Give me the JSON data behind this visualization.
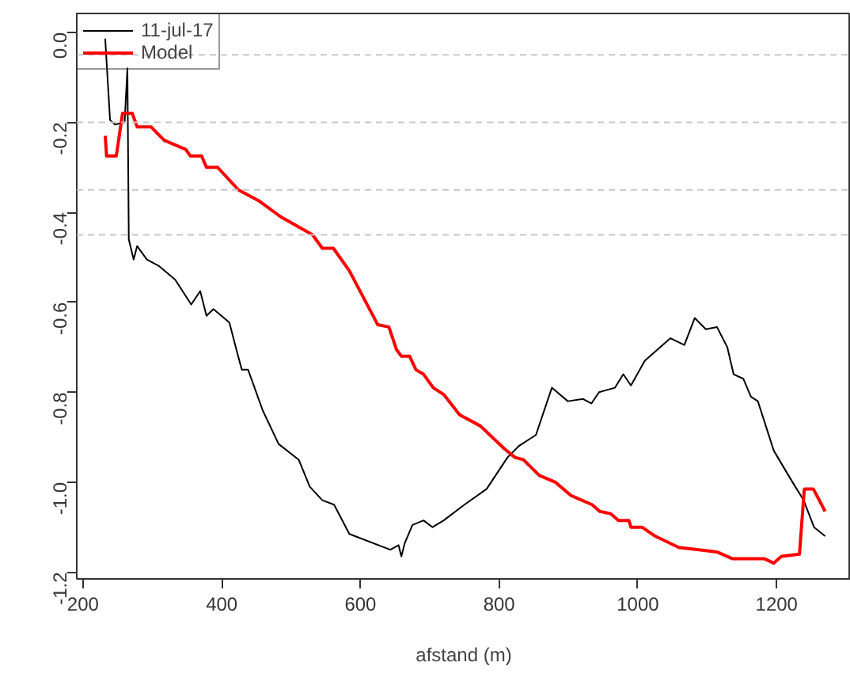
{
  "chart_data": {
    "type": "line",
    "xlabel": "afstand (m)",
    "xlim": [
      191,
      1307
    ],
    "ylim": [
      -1.215,
      0.042
    ],
    "xticks": [
      200,
      400,
      600,
      800,
      1000,
      1200
    ],
    "yticks": [
      {
        "value": 0,
        "label": "0.0"
      },
      -0.2,
      -0.4,
      -0.6,
      -0.8,
      {
        "value": -1,
        "label": "-1.0"
      },
      -1.2
    ],
    "grid": false,
    "legend": "top left",
    "line_style": "solid",
    "marker": "none",
    "series": [
      {
        "name": "11-jul-17",
        "color": "#000000",
        "x": [
          232,
          239,
          246,
          260,
          264,
          266,
          273,
          278,
          292,
          310,
          333,
          356,
          369,
          378,
          388,
          411,
          422,
          429,
          438,
          459,
          482,
          511,
          527,
          545,
          562,
          584,
          643,
          655,
          659,
          664,
          675,
          691,
          704,
          720,
          750,
          782,
          812,
          828,
          853,
          876,
          899,
          921,
          933,
          944,
          967,
          979,
          990,
          1010,
          1047,
          1067,
          1082,
          1098,
          1114,
          1129,
          1138,
          1152,
          1163,
          1173,
          1196,
          1223,
          1239,
          1254,
          1270
        ],
        "values": [
          -0.014,
          -0.195,
          -0.205,
          -0.2,
          -0.08,
          -0.46,
          -0.505,
          -0.475,
          -0.505,
          -0.52,
          -0.55,
          -0.605,
          -0.575,
          -0.63,
          -0.615,
          -0.645,
          -0.71,
          -0.75,
          -0.75,
          -0.84,
          -0.915,
          -0.95,
          -1.01,
          -1.04,
          -1.05,
          -1.115,
          -1.15,
          -1.14,
          -1.165,
          -1.135,
          -1.095,
          -1.085,
          -1.1,
          -1.085,
          -1.05,
          -1.015,
          -0.945,
          -0.92,
          -0.895,
          -0.79,
          -0.82,
          -0.815,
          -0.825,
          -0.8,
          -0.79,
          -0.76,
          -0.785,
          -0.73,
          -0.68,
          -0.695,
          -0.635,
          -0.66,
          -0.655,
          -0.7,
          -0.76,
          -0.77,
          -0.81,
          -0.82,
          -0.93,
          -1.0,
          -1.04,
          -1.1,
          -1.12
        ]
      },
      {
        "name": "Model",
        "color": "#ff0000",
        "x": [
          232,
          234,
          248,
          257,
          271,
          278,
          298,
          317,
          348,
          355,
          371,
          378,
          394,
          424,
          454,
          485,
          531,
          545,
          561,
          584,
          625,
          641,
          652,
          659,
          671,
          680,
          691,
          705,
          720,
          743,
          773,
          807,
          823,
          835,
          858,
          881,
          904,
          934,
          945,
          961,
          972,
          987,
          990,
          1006,
          1025,
          1059,
          1086,
          1114,
          1136,
          1182,
          1196,
          1207,
          1233,
          1240,
          1253,
          1270
        ],
        "values": [
          -0.23,
          -0.275,
          -0.275,
          -0.18,
          -0.18,
          -0.21,
          -0.21,
          -0.24,
          -0.26,
          -0.275,
          -0.275,
          -0.3,
          -0.3,
          -0.35,
          -0.375,
          -0.41,
          -0.45,
          -0.48,
          -0.48,
          -0.53,
          -0.65,
          -0.655,
          -0.705,
          -0.72,
          -0.72,
          -0.75,
          -0.76,
          -0.79,
          -0.805,
          -0.85,
          -0.875,
          -0.925,
          -0.945,
          -0.95,
          -0.985,
          -1.0,
          -1.03,
          -1.05,
          -1.065,
          -1.07,
          -1.085,
          -1.085,
          -1.1,
          -1.1,
          -1.12,
          -1.145,
          -1.15,
          -1.155,
          -1.17,
          -1.17,
          -1.18,
          -1.165,
          -1.16,
          -1.015,
          -1.015,
          -1.065
        ]
      }
    ],
    "ref_lines": [
      {
        "axis": "y",
        "value": -0.05,
        "color": "#c8c8c8",
        "line_style": "dashed"
      },
      {
        "axis": "y",
        "value": -0.2,
        "color": "#c8c8c8",
        "line_style": "dashed"
      },
      {
        "axis": "y",
        "value": -0.35,
        "color": "#c8c8c8",
        "line_style": "dashed"
      },
      {
        "axis": "y",
        "value": -0.45,
        "color": "#c8c8c8",
        "line_style": "dashed"
      }
    ]
  }
}
